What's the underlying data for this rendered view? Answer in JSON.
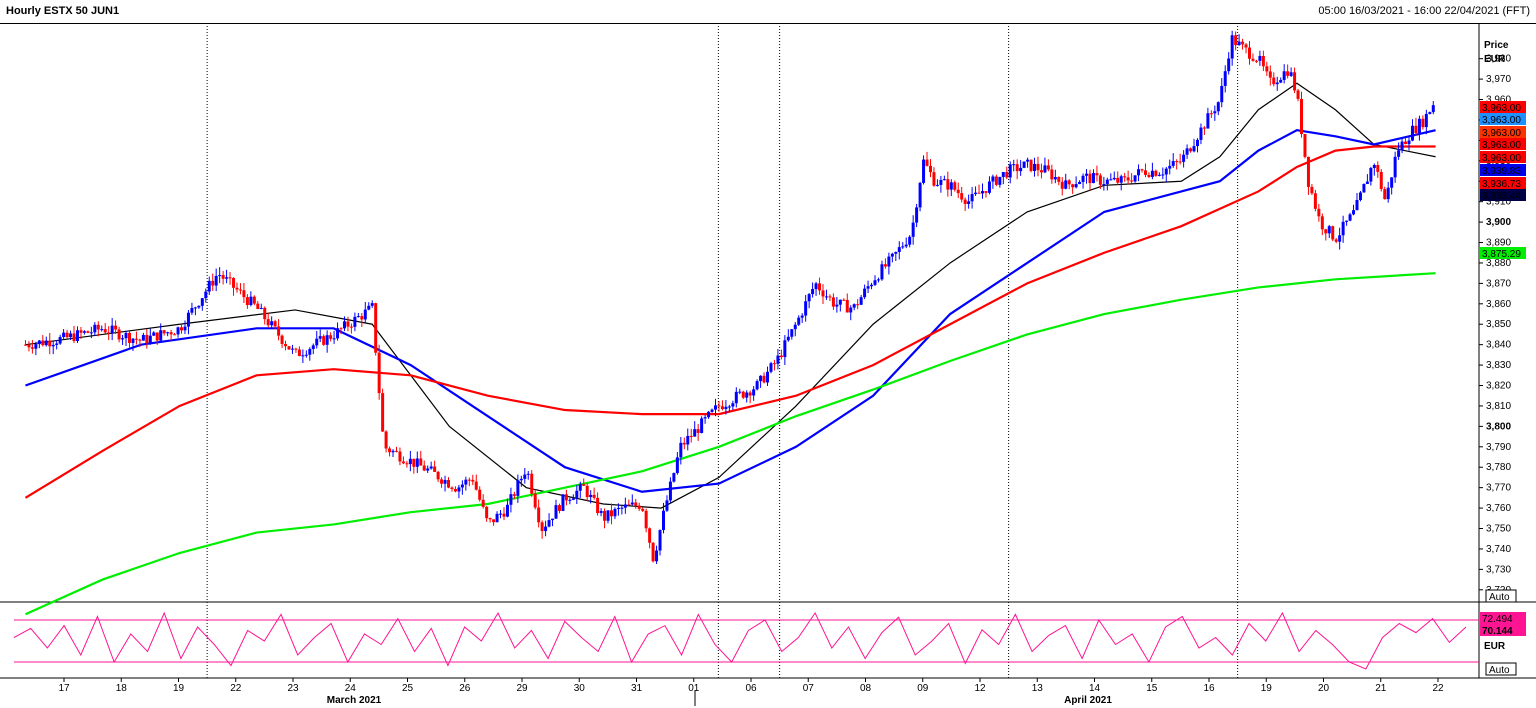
{
  "header": {
    "title": "Hourly ESTX 50 JUN1",
    "range": "05:00 16/03/2021 - 16:00 22/04/2021 (FFT)"
  },
  "price_axis": {
    "title": "Price",
    "unit": "EUR",
    "auto_label": "Auto"
  },
  "osc_axis": {
    "unit": "EUR",
    "auto_label": "Auto"
  },
  "colors": {
    "up_candle": "#0000ff",
    "down_candle": "#ff0000",
    "ma_black": "#000000",
    "ma_blue": "#0000ff",
    "ma_red": "#ff0000",
    "ma_green": "#00ee00",
    "oscillator": "#ff1493"
  },
  "chart_data": [
    {
      "type": "candlestick",
      "title": "Hourly ESTX 50 JUN1",
      "ylabel": "Price EUR",
      "ylim": [
        3715,
        3996
      ],
      "grid": false,
      "y_ticks": [
        3720,
        3730,
        3740,
        3750,
        3760,
        3770,
        3780,
        3790,
        3800,
        3810,
        3820,
        3830,
        3840,
        3850,
        3860,
        3870,
        3880,
        3890,
        3900,
        3910,
        3920,
        3930,
        3940,
        3950,
        3960,
        3970,
        3980
      ],
      "y_tick_labels": [
        "3,720",
        "3,730",
        "3,740",
        "3,750",
        "3,760",
        "3,770",
        "3,780",
        "3,790",
        "3,800",
        "3,810",
        "3,820",
        "3,830",
        "3,840",
        "3,850",
        "3,860",
        "3,870",
        "3,880",
        "3,890",
        "3,900",
        "3,910",
        "3,920",
        "3,930",
        "3,940",
        "3,950",
        "3,960",
        "3,970",
        "3,980"
      ],
      "y_bold_ticks": [
        3800,
        3900
      ],
      "x_day_labels": [
        "17",
        "18",
        "19",
        "22",
        "23",
        "24",
        "25",
        "26",
        "29",
        "30",
        "31",
        "01",
        "06",
        "07",
        "08",
        "09",
        "12",
        "13",
        "14",
        "15",
        "16",
        "19",
        "20",
        "21",
        "22"
      ],
      "x_month_labels": [
        "March 2021",
        "April 2021"
      ],
      "week_separators_after": [
        "19",
        "01",
        "06",
        "12",
        "16"
      ],
      "price_path": [
        [
          0,
          3840
        ],
        [
          1,
          3843
        ],
        [
          2,
          3848
        ],
        [
          3,
          3842
        ],
        [
          4,
          3848
        ],
        [
          5,
          3875
        ],
        [
          6,
          3858
        ],
        [
          7,
          3835
        ],
        [
          8,
          3845
        ],
        [
          9,
          3858
        ],
        [
          9.3,
          3790
        ],
        [
          9.8,
          3785
        ],
        [
          10.5,
          3778
        ],
        [
          11.2,
          3770
        ],
        [
          11.6,
          3775
        ],
        [
          12.0,
          3752
        ],
        [
          12.5,
          3760
        ],
        [
          13.0,
          3780
        ],
        [
          13.4,
          3750
        ],
        [
          14.0,
          3765
        ],
        [
          14.5,
          3770
        ],
        [
          15.0,
          3755
        ],
        [
          15.5,
          3760
        ],
        [
          16.0,
          3762
        ],
        [
          16.3,
          3735
        ],
        [
          16.6,
          3760
        ],
        [
          17.0,
          3790
        ],
        [
          17.5,
          3800
        ],
        [
          18.0,
          3810
        ],
        [
          18.5,
          3815
        ],
        [
          19.0,
          3820
        ],
        [
          19.5,
          3832
        ],
        [
          20.0,
          3850
        ],
        [
          20.5,
          3870
        ],
        [
          21.0,
          3860
        ],
        [
          21.5,
          3858
        ],
        [
          22.0,
          3872
        ],
        [
          22.5,
          3882
        ],
        [
          23.0,
          3895
        ],
        [
          23.3,
          3930
        ],
        [
          23.6,
          3920
        ],
        [
          24.0,
          3918
        ],
        [
          24.5,
          3910
        ],
        [
          25.0,
          3918
        ],
        [
          25.5,
          3925
        ],
        [
          26.0,
          3928
        ],
        [
          26.5,
          3925
        ],
        [
          27.0,
          3918
        ],
        [
          27.5,
          3922
        ],
        [
          28.0,
          3920
        ],
        [
          28.5,
          3920
        ],
        [
          29.0,
          3925
        ],
        [
          29.5,
          3925
        ],
        [
          30.0,
          3930
        ],
        [
          30.5,
          3945
        ],
        [
          31.0,
          3960
        ],
        [
          31.3,
          3990
        ],
        [
          31.6,
          3985
        ],
        [
          32.0,
          3980
        ],
        [
          32.3,
          3968
        ],
        [
          32.8,
          3975
        ],
        [
          33.0,
          3962
        ],
        [
          33.3,
          3920
        ],
        [
          33.6,
          3900
        ],
        [
          34.0,
          3892
        ],
        [
          34.5,
          3905
        ],
        [
          35.0,
          3930
        ],
        [
          35.3,
          3910
        ],
        [
          35.6,
          3935
        ],
        [
          36.0,
          3945
        ],
        [
          36.3,
          3950
        ],
        [
          36.6,
          3960
        ]
      ],
      "series": [
        {
          "name": "",
          "color": "ma_black",
          "values": [
            [
              0,
              3840
            ],
            [
              4,
              3850
            ],
            [
              7,
              3857
            ],
            [
              9,
              3850
            ],
            [
              11,
              3800
            ],
            [
              13,
              3770
            ],
            [
              15,
              3762
            ],
            [
              16.5,
              3760
            ],
            [
              18,
              3775
            ],
            [
              20,
              3810
            ],
            [
              22,
              3850
            ],
            [
              24,
              3880
            ],
            [
              26,
              3905
            ],
            [
              28,
              3918
            ],
            [
              30,
              3920
            ],
            [
              31,
              3932
            ],
            [
              32,
              3955
            ],
            [
              33,
              3968
            ],
            [
              34,
              3955
            ],
            [
              35,
              3938
            ],
            [
              36.6,
              3932
            ]
          ]
        },
        {
          "name": "",
          "color": "ma_blue",
          "values": [
            [
              0,
              3820
            ],
            [
              3,
              3840
            ],
            [
              6,
              3848
            ],
            [
              8,
              3848
            ],
            [
              10,
              3830
            ],
            [
              12,
              3805
            ],
            [
              14,
              3780
            ],
            [
              16,
              3768
            ],
            [
              18,
              3772
            ],
            [
              20,
              3790
            ],
            [
              22,
              3815
            ],
            [
              24,
              3855
            ],
            [
              26,
              3880
            ],
            [
              28,
              3905
            ],
            [
              30,
              3915
            ],
            [
              31,
              3920
            ],
            [
              32,
              3935
            ],
            [
              33,
              3945
            ],
            [
              34,
              3942
            ],
            [
              35,
              3938
            ],
            [
              36.6,
              3945
            ]
          ]
        },
        {
          "name": "",
          "color": "ma_red",
          "values": [
            [
              0,
              3765
            ],
            [
              2,
              3788
            ],
            [
              4,
              3810
            ],
            [
              6,
              3825
            ],
            [
              8,
              3828
            ],
            [
              10,
              3825
            ],
            [
              12,
              3815
            ],
            [
              14,
              3808
            ],
            [
              16,
              3806
            ],
            [
              18,
              3806
            ],
            [
              20,
              3815
            ],
            [
              22,
              3830
            ],
            [
              24,
              3850
            ],
            [
              26,
              3870
            ],
            [
              28,
              3885
            ],
            [
              30,
              3898
            ],
            [
              32,
              3915
            ],
            [
              33,
              3927
            ],
            [
              34,
              3935
            ],
            [
              35,
              3937
            ],
            [
              36.6,
              3937
            ]
          ]
        },
        {
          "name": "",
          "color": "ma_green",
          "values": [
            [
              0,
              3708
            ],
            [
              2,
              3725
            ],
            [
              4,
              3738
            ],
            [
              6,
              3748
            ],
            [
              8,
              3752
            ],
            [
              10,
              3758
            ],
            [
              12,
              3762
            ],
            [
              14,
              3770
            ],
            [
              16,
              3778
            ],
            [
              18,
              3790
            ],
            [
              20,
              3805
            ],
            [
              22,
              3818
            ],
            [
              24,
              3832
            ],
            [
              26,
              3845
            ],
            [
              28,
              3855
            ],
            [
              30,
              3862
            ],
            [
              32,
              3868
            ],
            [
              34,
              3872
            ],
            [
              36.6,
              3875
            ]
          ]
        }
      ],
      "price_labels": [
        {
          "value": "3,963.00",
          "color": "#ff0000"
        },
        {
          "value": "3,963.00",
          "color": "#1e90ff"
        },
        {
          "value": "3,963.00",
          "color": "#ff3300"
        },
        {
          "value": "3,963.00",
          "color": "#ff0000"
        },
        {
          "value": "3,963.00",
          "color": "#ff0000"
        },
        {
          "value": "3,939.83",
          "color": "#0000ee"
        },
        {
          "value": "3,936.73",
          "color": "#ff0000"
        },
        {
          "value": "3,933.44",
          "color": "#000044"
        },
        {
          "value": "3,875.29",
          "color": "#00ee00"
        }
      ]
    },
    {
      "type": "line",
      "name": "",
      "ylim": [
        0,
        100
      ],
      "levels": [
        80,
        20
      ],
      "last_values": [
        "72.494",
        "70.144"
      ],
      "values": [
        55,
        68,
        40,
        72,
        30,
        85,
        20,
        60,
        35,
        90,
        25,
        70,
        45,
        15,
        65,
        50,
        88,
        30,
        55,
        75,
        20,
        60,
        45,
        82,
        35,
        68,
        15,
        70,
        50,
        90,
        40,
        65,
        25,
        78,
        55,
        35,
        85,
        20,
        60,
        72,
        30,
        88,
        45,
        20,
        65,
        80,
        35,
        55,
        90,
        40,
        70,
        25,
        62,
        84,
        30,
        50,
        75,
        18,
        66,
        45,
        88,
        35,
        58,
        72,
        25,
        80,
        45,
        60,
        20,
        70,
        85,
        40,
        55,
        30,
        75,
        50,
        90,
        35,
        65,
        45,
        20,
        10,
        55,
        75,
        62,
        82,
        48,
        70
      ]
    }
  ]
}
